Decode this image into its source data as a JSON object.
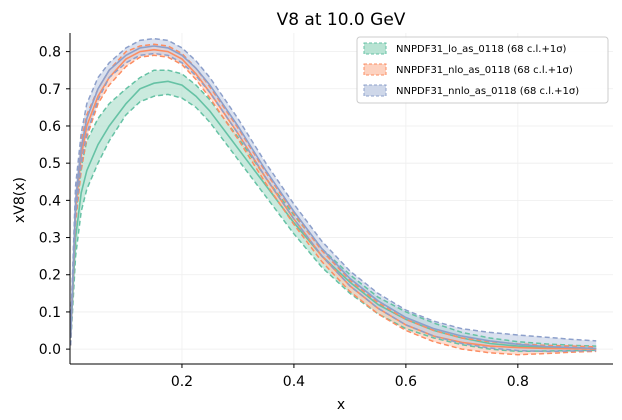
{
  "chart_data": {
    "type": "line",
    "title": "V8 at 10.0 GeV",
    "xlabel": "x",
    "ylabel": "xV8(x)",
    "xlim": [
      0.0,
      0.97
    ],
    "ylim": [
      -0.04,
      0.85
    ],
    "xticks": [
      0.2,
      0.4,
      0.6,
      0.8
    ],
    "xtick_labels": [
      "0.2",
      "0.4",
      "0.6",
      "0.8"
    ],
    "yticks": [
      0.0,
      0.1,
      0.2,
      0.3,
      0.4,
      0.5,
      0.6,
      0.7,
      0.8
    ],
    "ytick_labels": [
      "0.0",
      "0.1",
      "0.2",
      "0.3",
      "0.4",
      "0.5",
      "0.6",
      "0.7",
      "0.8"
    ],
    "grid": true,
    "legend_position": "top-right",
    "x": [
      0.001,
      0.01,
      0.02,
      0.03,
      0.05,
      0.07,
      0.1,
      0.125,
      0.15,
      0.175,
      0.2,
      0.225,
      0.25,
      0.3,
      0.35,
      0.4,
      0.45,
      0.5,
      0.55,
      0.6,
      0.65,
      0.7,
      0.75,
      0.8,
      0.85,
      0.9,
      0.94
    ],
    "series": [
      {
        "name": "NNPDF31_lo_as_0118 (68 c.l.+1σ)",
        "color": "#66c2a5",
        "fill": "#a6dcc8",
        "central": [
          0.03,
          0.3,
          0.42,
          0.48,
          0.55,
          0.6,
          0.66,
          0.7,
          0.715,
          0.72,
          0.71,
          0.68,
          0.64,
          0.54,
          0.44,
          0.34,
          0.25,
          0.18,
          0.12,
          0.08,
          0.05,
          0.03,
          0.015,
          0.008,
          0.004,
          0.002,
          0.001
        ],
        "upper": [
          0.05,
          0.36,
          0.49,
          0.56,
          0.62,
          0.66,
          0.7,
          0.73,
          0.75,
          0.75,
          0.74,
          0.71,
          0.67,
          0.57,
          0.46,
          0.36,
          0.27,
          0.2,
          0.14,
          0.1,
          0.07,
          0.045,
          0.03,
          0.02,
          0.014,
          0.01,
          0.008
        ],
        "lower": [
          0.01,
          0.25,
          0.37,
          0.43,
          0.5,
          0.56,
          0.63,
          0.665,
          0.68,
          0.685,
          0.675,
          0.65,
          0.61,
          0.51,
          0.41,
          0.31,
          0.22,
          0.15,
          0.095,
          0.055,
          0.03,
          0.012,
          0.0,
          -0.006,
          -0.005,
          -0.004,
          -0.003
        ]
      },
      {
        "name": "NNPDF31_nlo_as_0118 (68 c.l.+1σ)",
        "color": "#fc8d62",
        "fill": "#fdc7b0",
        "central": [
          0.03,
          0.38,
          0.52,
          0.6,
          0.68,
          0.73,
          0.78,
          0.8,
          0.805,
          0.8,
          0.78,
          0.74,
          0.69,
          0.58,
          0.46,
          0.35,
          0.25,
          0.17,
          0.11,
          0.065,
          0.035,
          0.018,
          0.008,
          0.004,
          0.002,
          0.001,
          0.0
        ],
        "upper": [
          0.05,
          0.42,
          0.56,
          0.63,
          0.7,
          0.75,
          0.8,
          0.815,
          0.82,
          0.815,
          0.795,
          0.755,
          0.705,
          0.595,
          0.475,
          0.365,
          0.265,
          0.185,
          0.125,
          0.08,
          0.05,
          0.03,
          0.02,
          0.014,
          0.01,
          0.008,
          0.006
        ],
        "lower": [
          0.01,
          0.34,
          0.48,
          0.57,
          0.66,
          0.71,
          0.76,
          0.785,
          0.79,
          0.785,
          0.765,
          0.725,
          0.675,
          0.565,
          0.445,
          0.335,
          0.235,
          0.155,
          0.095,
          0.05,
          0.02,
          0.0,
          -0.01,
          -0.015,
          -0.012,
          -0.008,
          -0.006
        ]
      },
      {
        "name": "NNPDF31_nnlo_as_0118 (68 c.l.+1σ)",
        "color": "#8da0cb",
        "fill": "#c2cde4",
        "central": [
          0.03,
          0.4,
          0.54,
          0.62,
          0.7,
          0.75,
          0.79,
          0.81,
          0.815,
          0.81,
          0.79,
          0.755,
          0.71,
          0.6,
          0.48,
          0.37,
          0.27,
          0.19,
          0.13,
          0.085,
          0.055,
          0.035,
          0.022,
          0.013,
          0.007,
          0.004,
          0.002
        ],
        "upper": [
          0.05,
          0.44,
          0.58,
          0.66,
          0.73,
          0.77,
          0.81,
          0.83,
          0.835,
          0.83,
          0.81,
          0.775,
          0.73,
          0.62,
          0.5,
          0.39,
          0.29,
          0.21,
          0.15,
          0.105,
          0.075,
          0.055,
          0.045,
          0.038,
          0.032,
          0.026,
          0.022
        ],
        "lower": [
          0.01,
          0.36,
          0.5,
          0.58,
          0.67,
          0.73,
          0.77,
          0.79,
          0.795,
          0.79,
          0.77,
          0.735,
          0.69,
          0.58,
          0.46,
          0.35,
          0.25,
          0.17,
          0.11,
          0.065,
          0.035,
          0.015,
          0.003,
          -0.004,
          -0.006,
          -0.005,
          -0.004
        ]
      }
    ]
  }
}
